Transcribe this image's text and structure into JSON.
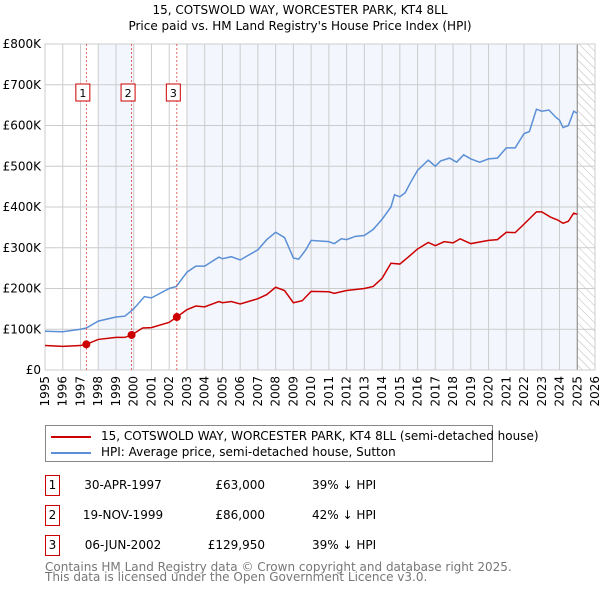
{
  "chart_data": {
    "type": "line",
    "title": "15, COTSWOLD WAY, WORCESTER PARK, KT4 8LL",
    "subtitle": "Price paid vs. HM Land Registry's House Price Index (HPI)",
    "xlim": [
      1995,
      2026
    ],
    "ylim": [
      0,
      800000
    ],
    "x_ticks": [
      "1995",
      "1996",
      "1997",
      "1998",
      "1999",
      "2000",
      "2001",
      "2002",
      "2003",
      "2004",
      "2005",
      "2006",
      "2007",
      "2008",
      "2009",
      "2010",
      "2011",
      "2012",
      "2013",
      "2014",
      "2015",
      "2016",
      "2017",
      "2018",
      "2019",
      "2020",
      "2021",
      "2022",
      "2023",
      "2024",
      "2025",
      "2026"
    ],
    "y_ticks": [
      {
        "value": 0,
        "label": "£0"
      },
      {
        "value": 100000,
        "label": "£100K"
      },
      {
        "value": 200000,
        "label": "£200K"
      },
      {
        "value": 300000,
        "label": "£300K"
      },
      {
        "value": 400000,
        "label": "£400K"
      },
      {
        "value": 500000,
        "label": "£500K"
      },
      {
        "value": 600000,
        "label": "£600K"
      },
      {
        "value": 700000,
        "label": "£700K"
      },
      {
        "value": 800000,
        "label": "£800K"
      }
    ],
    "grid": true,
    "shaded_ranges": [
      [
        1998,
        2000
      ],
      [
        2003,
        2025
      ]
    ],
    "future_hatched_from": 2025,
    "series": [
      {
        "name": "15, COTSWOLD WAY, WORCESTER PARK, KT4 8LL (semi-detached house)",
        "color": "#cc0000",
        "x": [
          1995,
          1996,
          1997,
          1997.33,
          1998,
          1999,
          1999.5,
          1999.88,
          2000.5,
          2001,
          2002,
          2002.43,
          2003,
          2003.5,
          2004,
          2004.8,
          2005,
          2005.5,
          2006,
          2007,
          2007.5,
          2008,
          2008.5,
          2009,
          2009.5,
          2010,
          2011,
          2011.3,
          2012,
          2013,
          2013.5,
          2014,
          2014.5,
          2015,
          2015.5,
          2016,
          2016.6,
          2017,
          2017.5,
          2018,
          2018.4,
          2019,
          2019.5,
          2020,
          2020.5,
          2021,
          2021.5,
          2022,
          2022.7,
          2023,
          2023.5,
          2023.9,
          2024.2,
          2024.5,
          2024.8,
          2025
        ],
        "y": [
          60,
          58,
          60,
          63,
          75,
          80,
          80,
          86,
          103,
          104,
          117,
          130,
          148,
          157,
          155,
          168,
          165,
          168,
          162,
          175,
          185,
          203,
          195,
          165,
          170,
          193,
          192,
          188,
          195,
          200,
          205,
          225,
          262,
          260,
          278,
          297,
          313,
          305,
          315,
          312,
          322,
          310,
          314,
          318,
          320,
          338,
          337,
          358,
          388,
          388,
          375,
          368,
          360,
          365,
          385,
          382
        ]
      },
      {
        "name": "HPI: Average price, semi-detached house, Sutton",
        "color": "#5b8fd6",
        "x": [
          1995,
          1996,
          1997,
          1997.33,
          1998,
          1999,
          1999.5,
          2000,
          2000.6,
          2001,
          2002,
          2002.4,
          2003,
          2003.5,
          2004,
          2004.8,
          2005,
          2005.5,
          2006,
          2007,
          2007.5,
          2008,
          2008.5,
          2009,
          2009.3,
          2009.7,
          2010,
          2011,
          2011.3,
          2011.7,
          2012,
          2012.5,
          2013,
          2013.5,
          2014,
          2014.5,
          2014.7,
          2015,
          2015.3,
          2015.6,
          2016,
          2016.6,
          2017,
          2017.3,
          2017.8,
          2018.2,
          2018.6,
          2019,
          2019.5,
          2020,
          2020.5,
          2021,
          2021.5,
          2022,
          2022.3,
          2022.7,
          2023,
          2023.4,
          2023.8,
          2024,
          2024.2,
          2024.5,
          2024.8,
          2025
        ],
        "y": [
          95,
          94,
          100,
          103,
          120,
          130,
          132,
          150,
          180,
          177,
          200,
          205,
          240,
          255,
          255,
          277,
          273,
          278,
          270,
          295,
          320,
          338,
          325,
          275,
          272,
          295,
          318,
          315,
          310,
          322,
          320,
          328,
          330,
          345,
          370,
          400,
          430,
          425,
          435,
          460,
          490,
          515,
          500,
          513,
          520,
          510,
          528,
          518,
          510,
          518,
          520,
          545,
          545,
          580,
          585,
          640,
          635,
          638,
          620,
          613,
          595,
          600,
          635,
          630
        ]
      }
    ],
    "y_units": "thousand GBP",
    "sales": [
      {
        "label": "1",
        "x": 1997.33,
        "price": 63000
      },
      {
        "label": "2",
        "x": 1999.88,
        "price": 86000
      },
      {
        "label": "3",
        "x": 2002.43,
        "price": 129950
      }
    ]
  },
  "legend": {
    "items": [
      "15, COTSWOLD WAY, WORCESTER PARK, KT4 8LL (semi-detached house)",
      "HPI: Average price, semi-detached house, Sutton"
    ]
  },
  "table": [
    {
      "num": "1",
      "date": "30-APR-1997",
      "price": "£63,000",
      "hpi": "39% ↓ HPI"
    },
    {
      "num": "2",
      "date": "19-NOV-1999",
      "price": "£86,000",
      "hpi": "42% ↓ HPI"
    },
    {
      "num": "3",
      "date": "06-JUN-2002",
      "price": "£129,950",
      "hpi": "39% ↓ HPI"
    }
  ],
  "footer": {
    "line1": "Contains HM Land Registry data © Crown copyright and database right 2025.",
    "line2": "This data is licensed under the Open Government Licence v3.0."
  }
}
